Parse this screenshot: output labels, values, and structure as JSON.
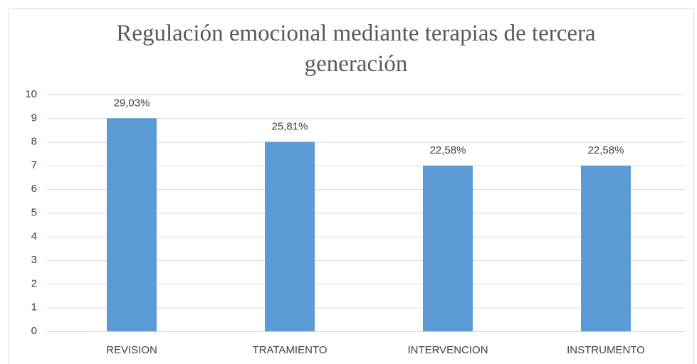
{
  "chart_data": {
    "type": "bar",
    "title": "Regulación emocional mediante terapias de tercera generación",
    "categories": [
      "REVISION",
      "TRATAMIENTO",
      "INTERVENCION",
      "INSTRUMENTO"
    ],
    "values": [
      9,
      8,
      7,
      7
    ],
    "data_labels": [
      "29,03%",
      "25,81%",
      "22,58%",
      "22,58%"
    ],
    "color": "#5b9bd5",
    "ylim": [
      0,
      10
    ],
    "yticks": [
      0,
      1,
      2,
      3,
      4,
      5,
      6,
      7,
      8,
      9,
      10
    ],
    "grid": true
  }
}
